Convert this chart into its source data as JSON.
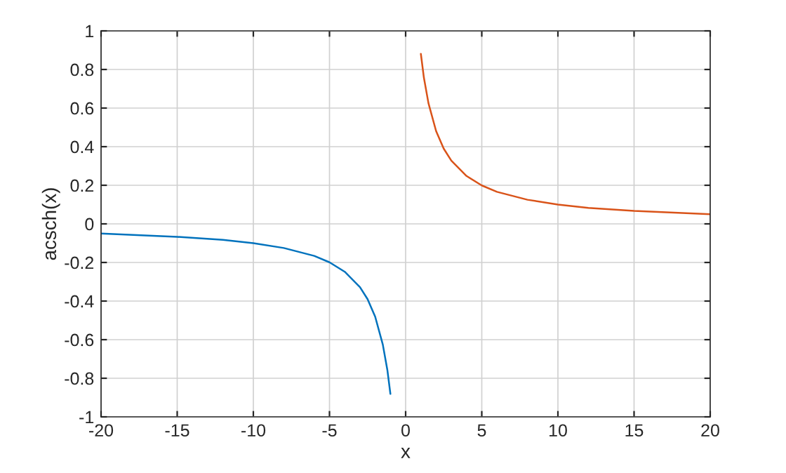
{
  "chart_data": {
    "type": "line",
    "xlabel": "x",
    "ylabel": "acsch(x)",
    "series": [
      {
        "color": "#0072bd",
        "x": [
          -20,
          -15,
          -12,
          -10,
          -8,
          -6,
          -5,
          -4,
          -3,
          -2.5,
          -2,
          -1.5,
          -1.2,
          -1
        ],
        "values": [
          -0.05,
          -0.067,
          -0.083,
          -0.1,
          -0.125,
          -0.166,
          -0.199,
          -0.248,
          -0.328,
          -0.39,
          -0.481,
          -0.625,
          -0.757,
          -0.881
        ]
      },
      {
        "color": "#d95319",
        "x": [
          1,
          1.2,
          1.5,
          2,
          2.5,
          3,
          4,
          5,
          6,
          8,
          10,
          12,
          15,
          20
        ],
        "values": [
          0.881,
          0.757,
          0.625,
          0.481,
          0.39,
          0.328,
          0.248,
          0.199,
          0.166,
          0.125,
          0.1,
          0.083,
          0.067,
          0.05
        ]
      }
    ],
    "xlim": [
      -20,
      20
    ],
    "xticks": [
      -20,
      -15,
      -10,
      -5,
      0,
      5,
      10,
      15,
      20
    ],
    "ylim": [
      -1,
      1
    ],
    "yticks": [
      -1,
      -0.8,
      -0.6,
      -0.4,
      -0.2,
      0,
      0.2,
      0.4,
      0.6,
      0.8,
      1
    ],
    "grid": true,
    "line_style": "solid",
    "marker": "none",
    "legend": false
  }
}
